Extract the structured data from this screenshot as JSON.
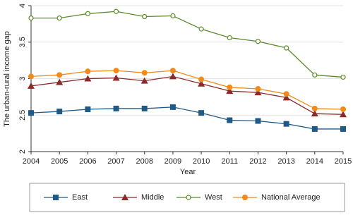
{
  "chart_data": {
    "type": "line",
    "xlabel": "Year",
    "ylabel": "The urban-rural income gap",
    "x": [
      2004,
      2005,
      2006,
      2007,
      2008,
      2009,
      2010,
      2011,
      2012,
      2013,
      2014,
      2015
    ],
    "xlim": [
      2004,
      2015
    ],
    "xticks": [
      2004,
      2005,
      2006,
      2007,
      2008,
      2009,
      2010,
      2011,
      2012,
      2013,
      2014,
      2015
    ],
    "ylim": [
      2,
      4
    ],
    "yticks": [
      2,
      2.5,
      3,
      3.5,
      4
    ],
    "grid": true,
    "legend": "bottom",
    "series": [
      {
        "name": "East",
        "color": "#1f5a87",
        "marker": "square",
        "values": [
          2.53,
          2.55,
          2.58,
          2.59,
          2.59,
          2.61,
          2.53,
          2.43,
          2.42,
          2.38,
          2.31,
          2.31
        ]
      },
      {
        "name": "Middle",
        "color": "#8c2a2a",
        "marker": "triangle",
        "values": [
          2.9,
          2.95,
          3.0,
          3.01,
          2.97,
          3.03,
          2.93,
          2.83,
          2.81,
          2.74,
          2.52,
          2.51
        ]
      },
      {
        "name": "West",
        "color": "#5b8a2b",
        "marker": "hollow-circle",
        "values": [
          3.83,
          3.83,
          3.89,
          3.92,
          3.85,
          3.86,
          3.68,
          3.56,
          3.51,
          3.42,
          3.05,
          3.02
        ]
      },
      {
        "name": "National Average",
        "color": "#f08a1c",
        "marker": "circle",
        "values": [
          3.03,
          3.05,
          3.1,
          3.11,
          3.08,
          3.11,
          2.99,
          2.88,
          2.86,
          2.79,
          2.59,
          2.58
        ]
      }
    ]
  }
}
